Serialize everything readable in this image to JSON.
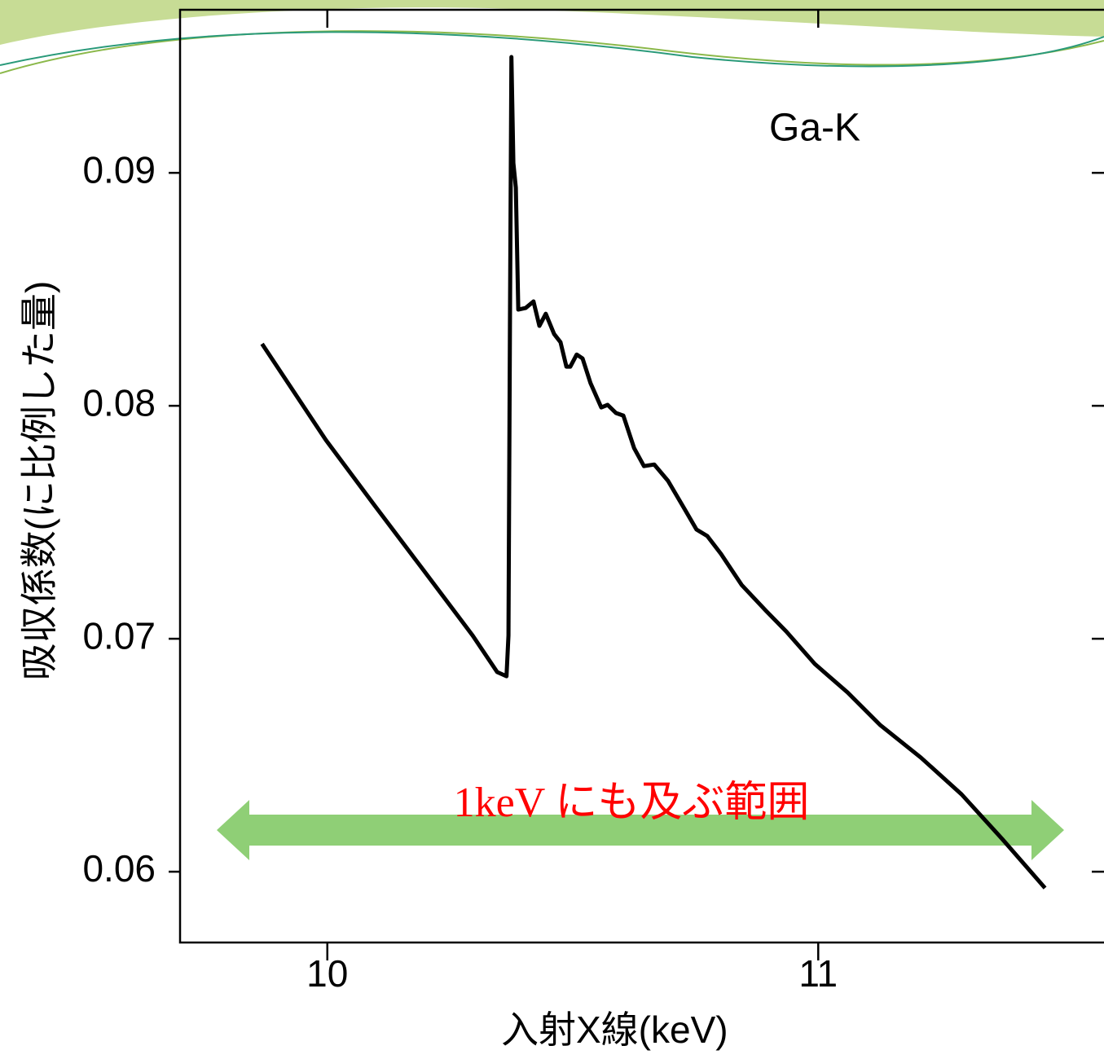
{
  "chart_data": {
    "type": "line",
    "annotation": "Ga-K",
    "range_note": "1keV にも及ぶ範囲",
    "x_label": "入射X線(keV)",
    "y_label": "吸収係数(に比例した量)",
    "xlim": [
      9.7,
      11.58
    ],
    "xticks": [
      10,
      11
    ],
    "ylim": [
      0.05696,
      0.097
    ],
    "yticks": [
      0.06,
      0.07,
      0.08,
      0.09
    ],
    "series": [
      {
        "color": "#000000",
        "x": [
          9.867,
          9.997,
          10.096,
          10.196,
          10.296,
          10.346,
          10.365,
          10.369,
          10.372,
          10.375,
          10.379,
          10.384,
          10.389,
          10.404,
          10.42,
          10.432,
          10.445,
          10.462,
          10.475,
          10.487,
          10.495,
          10.508,
          10.52,
          10.536,
          10.558,
          10.571,
          10.588,
          10.603,
          10.625,
          10.645,
          10.666,
          10.694,
          10.728,
          10.752,
          10.774,
          10.802,
          10.844,
          10.894,
          10.935,
          10.993,
          11.06,
          11.126,
          11.209,
          11.292,
          11.375,
          11.462
        ],
        "values": [
          0.08266,
          0.07853,
          0.07573,
          0.07294,
          0.07014,
          0.06857,
          0.06839,
          0.07014,
          0.08343,
          0.09497,
          0.09042,
          0.08937,
          0.08413,
          0.0842,
          0.08448,
          0.08343,
          0.08395,
          0.08308,
          0.08273,
          0.08168,
          0.08168,
          0.0822,
          0.08203,
          0.08098,
          0.07993,
          0.08004,
          0.07969,
          0.07958,
          0.07818,
          0.07741,
          0.07748,
          0.07678,
          0.07556,
          0.07469,
          0.07441,
          0.07364,
          0.07231,
          0.07119,
          0.07031,
          0.06892,
          0.06769,
          0.0663,
          0.0649,
          0.06332,
          0.0614,
          0.0593
        ]
      }
    ]
  }
}
